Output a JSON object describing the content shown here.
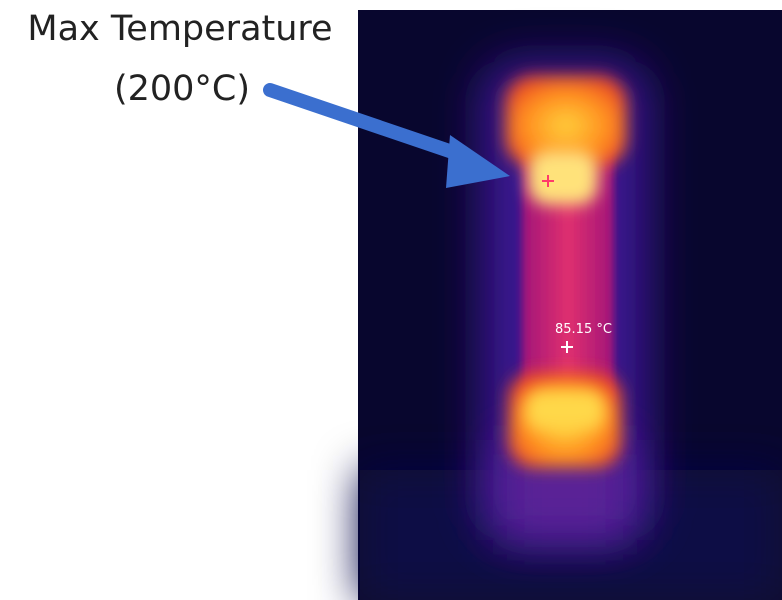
{
  "annotation": {
    "line1": "Max Temperature",
    "line2": "(200°C)"
  },
  "image": {
    "spot_label": "85.15 °C"
  }
}
